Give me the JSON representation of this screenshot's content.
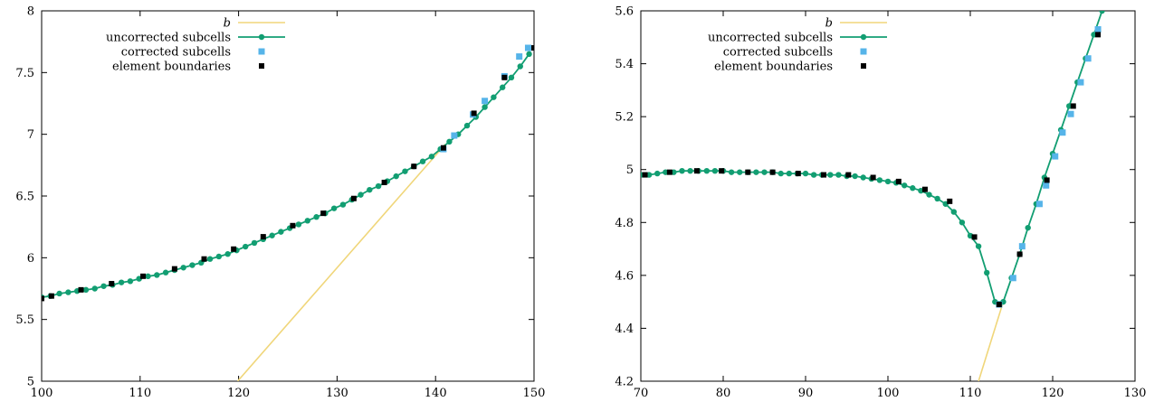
{
  "chart_data": [
    {
      "type": "line",
      "title": "",
      "xlabel": "",
      "ylabel": "",
      "xlim": [
        100,
        150
      ],
      "ylim": [
        5,
        8
      ],
      "grid": false,
      "legend_placement": "top-left",
      "xticks": [
        "100",
        "110",
        "120",
        "130",
        "140",
        "150"
      ],
      "yticks": [
        "5",
        "5.5",
        "6",
        "6.5",
        "7",
        "7.5",
        "8"
      ],
      "series": [
        {
          "name": "b",
          "style": "line",
          "color": "#f0d67a",
          "x": [
            119.9,
            141
          ],
          "y": [
            5.0,
            6.92
          ]
        },
        {
          "name": "uncorrected subcells",
          "style": "line-markers",
          "color": "#129e72",
          "x": [
            100.0,
            100.9,
            101.8,
            102.7,
            103.6,
            104.5,
            105.4,
            106.3,
            107.2,
            108.1,
            109.0,
            109.9,
            110.8,
            111.7,
            112.6,
            113.5,
            114.4,
            115.3,
            116.2,
            117.1,
            118.0,
            118.9,
            119.8,
            120.7,
            121.6,
            122.5,
            123.4,
            124.3,
            125.2,
            126.1,
            127.0,
            127.9,
            128.8,
            129.7,
            130.6,
            131.5,
            132.4,
            133.3,
            134.2,
            135.1,
            136.0,
            136.9,
            137.8,
            138.7,
            139.6,
            140.5,
            141.4,
            142.3,
            143.2,
            144.1,
            145.0,
            145.9,
            146.8,
            147.7,
            148.6,
            149.5
          ],
          "y": [
            5.68,
            5.69,
            5.71,
            5.72,
            5.73,
            5.74,
            5.75,
            5.77,
            5.78,
            5.8,
            5.81,
            5.83,
            5.85,
            5.86,
            5.88,
            5.9,
            5.92,
            5.94,
            5.96,
            5.99,
            6.01,
            6.03,
            6.06,
            6.09,
            6.12,
            6.15,
            6.18,
            6.21,
            6.24,
            6.27,
            6.3,
            6.33,
            6.36,
            6.4,
            6.43,
            6.47,
            6.51,
            6.55,
            6.58,
            6.62,
            6.66,
            6.7,
            6.74,
            6.78,
            6.82,
            6.88,
            6.94,
            7.0,
            7.07,
            7.14,
            7.22,
            7.3,
            7.38,
            7.46,
            7.55,
            7.65
          ]
        },
        {
          "name": "corrected subcells",
          "style": "markers",
          "color": "#56b4e9",
          "x": [
            140.8,
            141.9,
            143.8,
            145.0,
            147.0,
            148.5,
            149.4
          ],
          "y": [
            6.88,
            6.99,
            7.16,
            7.27,
            7.47,
            7.63,
            7.7
          ]
        },
        {
          "name": "element boundaries",
          "style": "markers",
          "color": "#000000",
          "x": [
            100.0,
            101.0,
            104.0,
            107.1,
            110.3,
            113.5,
            116.5,
            119.5,
            122.5,
            125.5,
            128.6,
            131.7,
            134.8,
            137.8,
            140.8,
            143.9,
            147.0,
            150.0
          ],
          "y": [
            5.67,
            5.69,
            5.74,
            5.79,
            5.85,
            5.91,
            5.99,
            6.07,
            6.17,
            6.26,
            6.36,
            6.48,
            6.61,
            6.74,
            6.89,
            7.17,
            7.46,
            7.7
          ]
        }
      ]
    },
    {
      "type": "line",
      "title": "",
      "xlabel": "",
      "ylabel": "",
      "xlim": [
        70,
        130
      ],
      "ylim": [
        4.2,
        5.6
      ],
      "grid": false,
      "legend_placement": "top-left",
      "xticks": [
        "70",
        "80",
        "90",
        "100",
        "110",
        "120",
        "130"
      ],
      "yticks": [
        "4.2",
        "4.4",
        "4.6",
        "4.8",
        "5",
        "5.2",
        "5.4",
        "5.6"
      ],
      "series": [
        {
          "name": "b",
          "style": "line",
          "color": "#f0d67a",
          "x": [
            111.0,
            114.0
          ],
          "y": [
            4.2,
            4.5
          ]
        },
        {
          "name": "uncorrected subcells",
          "style": "line-markers",
          "color": "#129e72",
          "x": [
            70.0,
            71.0,
            72.0,
            73.0,
            74.0,
            75.0,
            76.0,
            77.0,
            78.0,
            79.0,
            80.0,
            81.0,
            82.0,
            83.0,
            84.0,
            85.0,
            86.0,
            87.0,
            88.0,
            89.0,
            90.0,
            91.0,
            92.0,
            93.0,
            94.0,
            95.0,
            96.0,
            97.0,
            98.0,
            99.0,
            100.0,
            101.0,
            102.0,
            103.0,
            104.0,
            105.0,
            106.0,
            107.0,
            108.0,
            109.0,
            110.0,
            111.0,
            112.0,
            113.0,
            114.0,
            115.0,
            116.0,
            117.0,
            118.0,
            119.0,
            120.0,
            121.0,
            122.0,
            123.0,
            124.0,
            125.0,
            126.0,
            127.0
          ],
          "y": [
            4.98,
            4.98,
            4.985,
            4.99,
            4.99,
            4.995,
            4.995,
            4.995,
            4.995,
            4.995,
            4.995,
            4.99,
            4.99,
            4.99,
            4.99,
            4.99,
            4.99,
            4.985,
            4.985,
            4.985,
            4.985,
            4.98,
            4.98,
            4.98,
            4.98,
            4.975,
            4.975,
            4.97,
            4.965,
            4.96,
            4.955,
            4.95,
            4.94,
            4.93,
            4.92,
            4.905,
            4.89,
            4.87,
            4.84,
            4.8,
            4.75,
            4.71,
            4.61,
            4.5,
            4.5,
            4.59,
            4.68,
            4.78,
            4.87,
            4.97,
            5.06,
            5.15,
            5.24,
            5.33,
            5.42,
            5.51,
            5.6,
            5.69
          ]
        },
        {
          "name": "corrected subcells",
          "style": "markers",
          "color": "#56b4e9",
          "x": [
            113.5,
            115.2,
            116.3,
            118.4,
            119.2,
            120.3,
            121.2,
            122.2,
            123.4,
            124.3,
            125.5
          ],
          "y": [
            4.49,
            4.59,
            4.71,
            4.87,
            4.94,
            5.05,
            5.14,
            5.21,
            5.33,
            5.42,
            5.53
          ]
        },
        {
          "name": "element boundaries",
          "style": "markers",
          "color": "#000000",
          "x": [
            70.5,
            73.5,
            76.8,
            79.8,
            83.0,
            86.0,
            89.1,
            92.2,
            95.2,
            98.2,
            101.3,
            104.5,
            107.5,
            110.5,
            113.5,
            116.0,
            119.3,
            122.5,
            125.5
          ],
          "y": [
            4.98,
            4.99,
            4.995,
            4.995,
            4.99,
            4.99,
            4.985,
            4.98,
            4.98,
            4.97,
            4.955,
            4.925,
            4.88,
            4.745,
            4.49,
            4.68,
            4.96,
            5.24,
            5.51
          ]
        }
      ]
    }
  ]
}
